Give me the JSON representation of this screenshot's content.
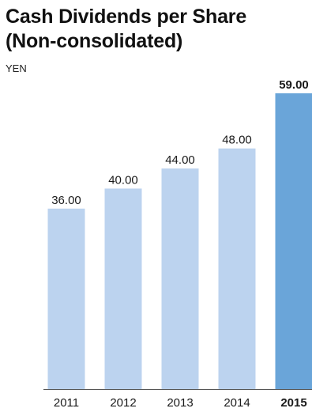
{
  "chart_data": {
    "type": "bar",
    "title_line1": "Cash Dividends per Share",
    "title_line2": "(Non-consolidated)",
    "unit": "YEN",
    "categories": [
      "2011",
      "2012",
      "2013",
      "2014",
      "2015"
    ],
    "values": [
      36.0,
      40.0,
      44.0,
      48.0,
      59.0
    ],
    "value_labels": [
      "36.00",
      "40.00",
      "44.00",
      "48.00",
      "59.00"
    ],
    "highlight_index": 4,
    "ylim": [
      0,
      59
    ],
    "grid": false,
    "legend": "none",
    "colors": {
      "bar": "#bcd3ef",
      "highlight": "#6aa5d9",
      "axis": "#555555"
    }
  }
}
